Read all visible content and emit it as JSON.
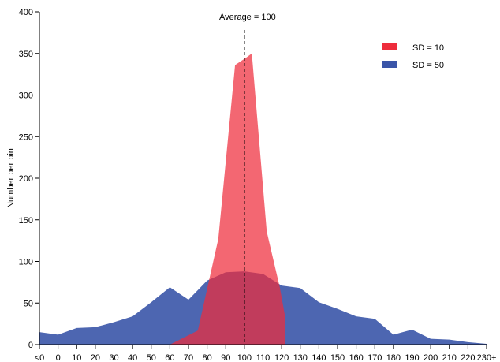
{
  "chart_data": {
    "type": "area",
    "title": "",
    "xlabel": "",
    "ylabel": "Number per bin",
    "ylim": [
      0,
      400
    ],
    "yticks": [
      0,
      50,
      100,
      150,
      200,
      250,
      300,
      350,
      400
    ],
    "categories": [
      "<0",
      "0",
      "10",
      "20",
      "30",
      "40",
      "50",
      "60",
      "70",
      "80",
      "90",
      "100",
      "110",
      "120",
      "130",
      "140",
      "150",
      "160",
      "170",
      "180",
      "190",
      "200",
      "210",
      "220",
      "230+"
    ],
    "grid": false,
    "legend_position": "top-right",
    "annotation": {
      "label": "Average = 100",
      "x": 100,
      "style": "dashed"
    },
    "series": [
      {
        "name": "SD = 50",
        "color": "#3a55a8",
        "points": [
          {
            "x": -10,
            "y": 15
          },
          {
            "x": 0,
            "y": 12
          },
          {
            "x": 10,
            "y": 20
          },
          {
            "x": 20,
            "y": 21
          },
          {
            "x": 30,
            "y": 27
          },
          {
            "x": 40,
            "y": 34
          },
          {
            "x": 50,
            "y": 51
          },
          {
            "x": 60,
            "y": 69
          },
          {
            "x": 70,
            "y": 54
          },
          {
            "x": 80,
            "y": 77
          },
          {
            "x": 90,
            "y": 87
          },
          {
            "x": 100,
            "y": 88
          },
          {
            "x": 110,
            "y": 85
          },
          {
            "x": 120,
            "y": 71
          },
          {
            "x": 130,
            "y": 68
          },
          {
            "x": 140,
            "y": 51
          },
          {
            "x": 150,
            "y": 43
          },
          {
            "x": 160,
            "y": 34
          },
          {
            "x": 170,
            "y": 31
          },
          {
            "x": 180,
            "y": 12
          },
          {
            "x": 190,
            "y": 18
          },
          {
            "x": 200,
            "y": 7
          },
          {
            "x": 210,
            "y": 6
          },
          {
            "x": 220,
            "y": 3
          },
          {
            "x": 230,
            "y": 1
          }
        ]
      },
      {
        "name": "SD = 10",
        "color": "#ee2d3c",
        "points": [
          {
            "x": 60,
            "y": 0
          },
          {
            "x": 75,
            "y": 17
          },
          {
            "x": 86,
            "y": 127
          },
          {
            "x": 95,
            "y": 336
          },
          {
            "x": 101,
            "y": 345
          },
          {
            "x": 104,
            "y": 350
          },
          {
            "x": 112,
            "y": 136
          },
          {
            "x": 119,
            "y": 69
          },
          {
            "x": 122,
            "y": 32
          },
          {
            "x": 122,
            "y": 0
          }
        ]
      }
    ]
  }
}
